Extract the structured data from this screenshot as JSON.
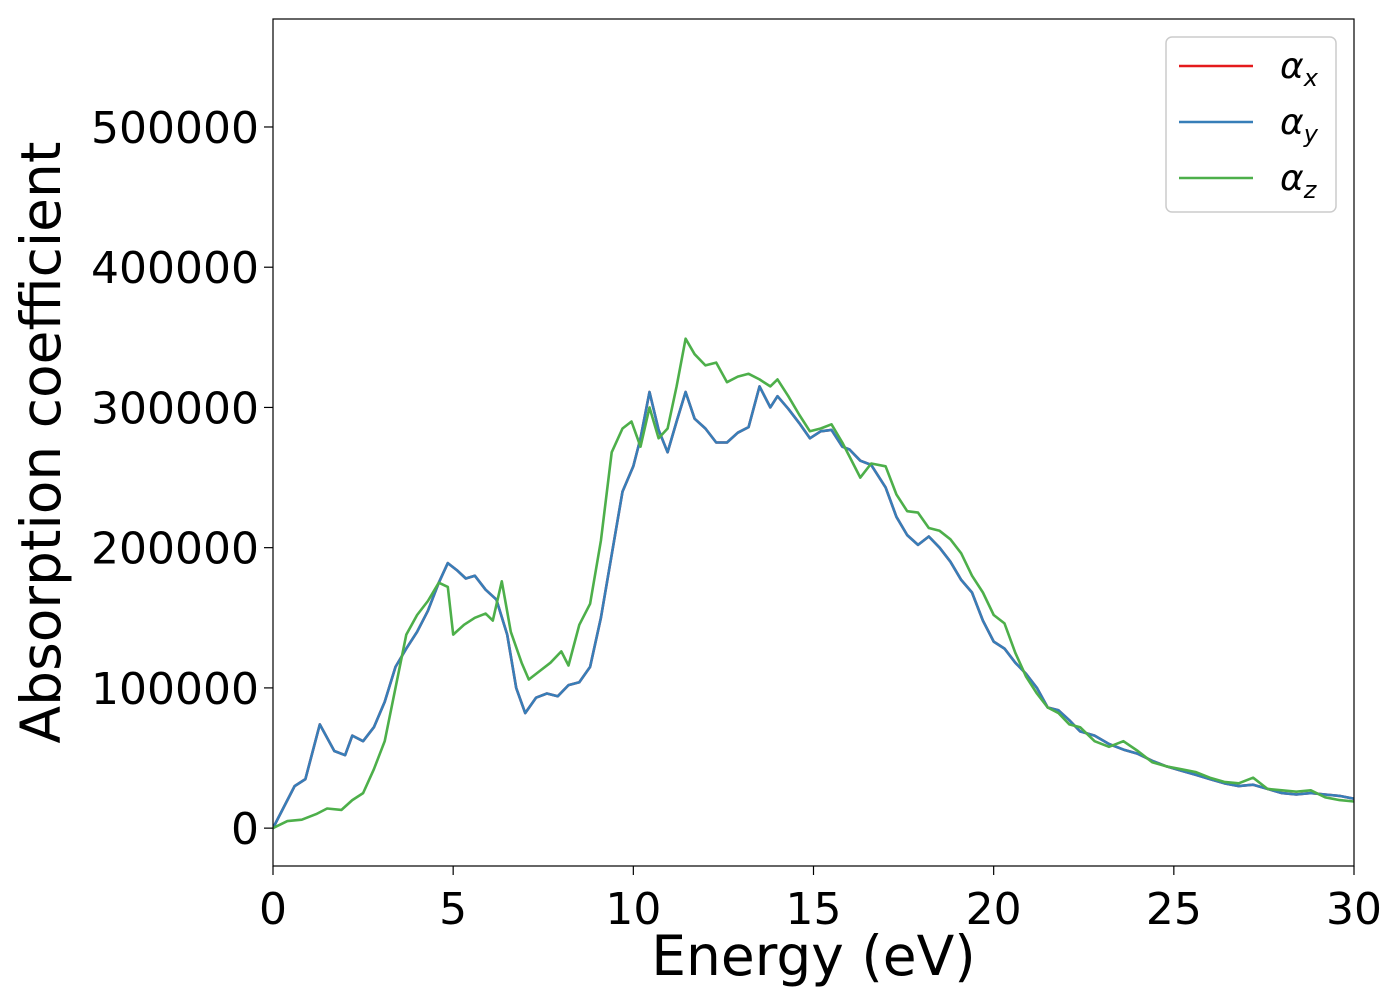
{
  "chart_data": {
    "type": "line",
    "title": "",
    "xlabel": "Energy (eV)",
    "ylabel": "Absorption coefficient",
    "xlim": [
      0,
      30
    ],
    "ylim": [
      -27000,
      577000
    ],
    "xticks": [
      0,
      5,
      10,
      15,
      20,
      25,
      30
    ],
    "yticks": [
      0,
      100000,
      200000,
      300000,
      400000,
      500000
    ],
    "grid": false,
    "legend_position": "top-right",
    "series": [
      {
        "name": "α_x",
        "legend_base": "α",
        "legend_sub": "x",
        "color": "#e41a1c",
        "points": [
          [
            0,
            0
          ],
          [
            0.3,
            15000
          ],
          [
            0.6,
            30000
          ],
          [
            0.9,
            35000
          ],
          [
            1.3,
            74000
          ],
          [
            1.7,
            55000
          ],
          [
            2.0,
            52000
          ],
          [
            2.2,
            66000
          ],
          [
            2.5,
            62000
          ],
          [
            2.8,
            72000
          ],
          [
            3.1,
            90000
          ],
          [
            3.4,
            115000
          ],
          [
            3.7,
            128000
          ],
          [
            4.0,
            140000
          ],
          [
            4.3,
            155000
          ],
          [
            4.6,
            175000
          ],
          [
            4.85,
            189000
          ],
          [
            5.1,
            184000
          ],
          [
            5.35,
            178000
          ],
          [
            5.6,
            180000
          ],
          [
            5.9,
            170000
          ],
          [
            6.2,
            163000
          ],
          [
            6.5,
            138000
          ],
          [
            6.75,
            100000
          ],
          [
            7.0,
            82000
          ],
          [
            7.3,
            93000
          ],
          [
            7.6,
            96000
          ],
          [
            7.9,
            94000
          ],
          [
            8.2,
            102000
          ],
          [
            8.5,
            104000
          ],
          [
            8.8,
            115000
          ],
          [
            9.1,
            150000
          ],
          [
            9.4,
            195000
          ],
          [
            9.7,
            240000
          ],
          [
            10.0,
            258000
          ],
          [
            10.2,
            278000
          ],
          [
            10.45,
            311000
          ],
          [
            10.7,
            284000
          ],
          [
            10.95,
            268000
          ],
          [
            11.2,
            290000
          ],
          [
            11.45,
            311000
          ],
          [
            11.7,
            292000
          ],
          [
            12.0,
            285000
          ],
          [
            12.3,
            275000
          ],
          [
            12.6,
            275000
          ],
          [
            12.9,
            282000
          ],
          [
            13.2,
            286000
          ],
          [
            13.5,
            315000
          ],
          [
            13.8,
            300000
          ],
          [
            14.0,
            308000
          ],
          [
            14.3,
            299000
          ],
          [
            14.6,
            289000
          ],
          [
            14.9,
            278000
          ],
          [
            15.2,
            283000
          ],
          [
            15.5,
            284000
          ],
          [
            15.8,
            272000
          ],
          [
            16.0,
            270000
          ],
          [
            16.3,
            262000
          ],
          [
            16.6,
            259000
          ],
          [
            17.0,
            243000
          ],
          [
            17.3,
            222000
          ],
          [
            17.6,
            209000
          ],
          [
            17.9,
            202000
          ],
          [
            18.2,
            208000
          ],
          [
            18.5,
            200000
          ],
          [
            18.8,
            190000
          ],
          [
            19.1,
            177000
          ],
          [
            19.4,
            168000
          ],
          [
            19.7,
            148000
          ],
          [
            20.0,
            133000
          ],
          [
            20.3,
            128000
          ],
          [
            20.6,
            118000
          ],
          [
            20.9,
            110000
          ],
          [
            21.2,
            100000
          ],
          [
            21.5,
            86000
          ],
          [
            21.8,
            84000
          ],
          [
            22.1,
            77000
          ],
          [
            22.4,
            69000
          ],
          [
            22.8,
            66000
          ],
          [
            23.2,
            60000
          ],
          [
            23.6,
            56000
          ],
          [
            24.0,
            53000
          ],
          [
            24.4,
            48000
          ],
          [
            24.8,
            44000
          ],
          [
            25.2,
            41000
          ],
          [
            25.6,
            38000
          ],
          [
            26.0,
            35000
          ],
          [
            26.4,
            32000
          ],
          [
            26.8,
            30000
          ],
          [
            27.2,
            31000
          ],
          [
            27.6,
            28000
          ],
          [
            28.0,
            25000
          ],
          [
            28.4,
            24000
          ],
          [
            28.8,
            25000
          ],
          [
            29.2,
            24000
          ],
          [
            29.6,
            23000
          ],
          [
            30.0,
            21000
          ]
        ]
      },
      {
        "name": "α_y",
        "legend_base": "α",
        "legend_sub": "y",
        "color": "#377eb8",
        "points": [
          [
            0,
            0
          ],
          [
            0.3,
            15000
          ],
          [
            0.6,
            30000
          ],
          [
            0.9,
            35000
          ],
          [
            1.3,
            74000
          ],
          [
            1.7,
            55000
          ],
          [
            2.0,
            52000
          ],
          [
            2.2,
            66000
          ],
          [
            2.5,
            62000
          ],
          [
            2.8,
            72000
          ],
          [
            3.1,
            90000
          ],
          [
            3.4,
            115000
          ],
          [
            3.7,
            128000
          ],
          [
            4.0,
            140000
          ],
          [
            4.3,
            155000
          ],
          [
            4.6,
            175000
          ],
          [
            4.85,
            189000
          ],
          [
            5.1,
            184000
          ],
          [
            5.35,
            178000
          ],
          [
            5.6,
            180000
          ],
          [
            5.9,
            170000
          ],
          [
            6.2,
            163000
          ],
          [
            6.5,
            138000
          ],
          [
            6.75,
            100000
          ],
          [
            7.0,
            82000
          ],
          [
            7.3,
            93000
          ],
          [
            7.6,
            96000
          ],
          [
            7.9,
            94000
          ],
          [
            8.2,
            102000
          ],
          [
            8.5,
            104000
          ],
          [
            8.8,
            115000
          ],
          [
            9.1,
            150000
          ],
          [
            9.4,
            195000
          ],
          [
            9.7,
            240000
          ],
          [
            10.0,
            258000
          ],
          [
            10.2,
            278000
          ],
          [
            10.45,
            311000
          ],
          [
            10.7,
            284000
          ],
          [
            10.95,
            268000
          ],
          [
            11.2,
            290000
          ],
          [
            11.45,
            311000
          ],
          [
            11.7,
            292000
          ],
          [
            12.0,
            285000
          ],
          [
            12.3,
            275000
          ],
          [
            12.6,
            275000
          ],
          [
            12.9,
            282000
          ],
          [
            13.2,
            286000
          ],
          [
            13.5,
            315000
          ],
          [
            13.8,
            300000
          ],
          [
            14.0,
            308000
          ],
          [
            14.3,
            299000
          ],
          [
            14.6,
            289000
          ],
          [
            14.9,
            278000
          ],
          [
            15.2,
            283000
          ],
          [
            15.5,
            284000
          ],
          [
            15.8,
            272000
          ],
          [
            16.0,
            270000
          ],
          [
            16.3,
            262000
          ],
          [
            16.6,
            259000
          ],
          [
            17.0,
            243000
          ],
          [
            17.3,
            222000
          ],
          [
            17.6,
            209000
          ],
          [
            17.9,
            202000
          ],
          [
            18.2,
            208000
          ],
          [
            18.5,
            200000
          ],
          [
            18.8,
            190000
          ],
          [
            19.1,
            177000
          ],
          [
            19.4,
            168000
          ],
          [
            19.7,
            148000
          ],
          [
            20.0,
            133000
          ],
          [
            20.3,
            128000
          ],
          [
            20.6,
            118000
          ],
          [
            20.9,
            110000
          ],
          [
            21.2,
            100000
          ],
          [
            21.5,
            86000
          ],
          [
            21.8,
            84000
          ],
          [
            22.1,
            77000
          ],
          [
            22.4,
            69000
          ],
          [
            22.8,
            66000
          ],
          [
            23.2,
            60000
          ],
          [
            23.6,
            56000
          ],
          [
            24.0,
            53000
          ],
          [
            24.4,
            48000
          ],
          [
            24.8,
            44000
          ],
          [
            25.2,
            41000
          ],
          [
            25.6,
            38000
          ],
          [
            26.0,
            35000
          ],
          [
            26.4,
            32000
          ],
          [
            26.8,
            30000
          ],
          [
            27.2,
            31000
          ],
          [
            27.6,
            28000
          ],
          [
            28.0,
            25000
          ],
          [
            28.4,
            24000
          ],
          [
            28.8,
            25000
          ],
          [
            29.2,
            24000
          ],
          [
            29.6,
            23000
          ],
          [
            30.0,
            21000
          ]
        ]
      },
      {
        "name": "α_z",
        "legend_base": "α",
        "legend_sub": "z",
        "color": "#4daf4a",
        "points": [
          [
            0,
            0
          ],
          [
            0.4,
            5000
          ],
          [
            0.8,
            6000
          ],
          [
            1.2,
            10000
          ],
          [
            1.5,
            14000
          ],
          [
            1.9,
            13000
          ],
          [
            2.2,
            20000
          ],
          [
            2.5,
            25000
          ],
          [
            2.8,
            42000
          ],
          [
            3.1,
            62000
          ],
          [
            3.4,
            100000
          ],
          [
            3.7,
            138000
          ],
          [
            4.0,
            152000
          ],
          [
            4.3,
            162000
          ],
          [
            4.6,
            175000
          ],
          [
            4.85,
            172000
          ],
          [
            5.0,
            138000
          ],
          [
            5.3,
            145000
          ],
          [
            5.6,
            150000
          ],
          [
            5.9,
            153000
          ],
          [
            6.1,
            148000
          ],
          [
            6.35,
            176000
          ],
          [
            6.6,
            140000
          ],
          [
            6.9,
            118000
          ],
          [
            7.1,
            106000
          ],
          [
            7.4,
            112000
          ],
          [
            7.7,
            118000
          ],
          [
            8.0,
            126000
          ],
          [
            8.2,
            116000
          ],
          [
            8.5,
            145000
          ],
          [
            8.8,
            160000
          ],
          [
            9.1,
            205000
          ],
          [
            9.4,
            268000
          ],
          [
            9.7,
            285000
          ],
          [
            9.95,
            290000
          ],
          [
            10.2,
            272000
          ],
          [
            10.45,
            300000
          ],
          [
            10.7,
            278000
          ],
          [
            10.95,
            285000
          ],
          [
            11.2,
            315000
          ],
          [
            11.45,
            349000
          ],
          [
            11.7,
            338000
          ],
          [
            12.0,
            330000
          ],
          [
            12.3,
            332000
          ],
          [
            12.6,
            318000
          ],
          [
            12.9,
            322000
          ],
          [
            13.2,
            324000
          ],
          [
            13.5,
            320000
          ],
          [
            13.8,
            315000
          ],
          [
            14.0,
            320000
          ],
          [
            14.3,
            308000
          ],
          [
            14.6,
            295000
          ],
          [
            14.9,
            283000
          ],
          [
            15.2,
            285000
          ],
          [
            15.5,
            288000
          ],
          [
            15.8,
            275000
          ],
          [
            16.0,
            265000
          ],
          [
            16.3,
            250000
          ],
          [
            16.6,
            260000
          ],
          [
            17.0,
            258000
          ],
          [
            17.3,
            238000
          ],
          [
            17.6,
            226000
          ],
          [
            17.9,
            225000
          ],
          [
            18.2,
            214000
          ],
          [
            18.5,
            212000
          ],
          [
            18.8,
            206000
          ],
          [
            19.1,
            196000
          ],
          [
            19.4,
            180000
          ],
          [
            19.7,
            168000
          ],
          [
            20.0,
            152000
          ],
          [
            20.3,
            146000
          ],
          [
            20.6,
            125000
          ],
          [
            20.9,
            108000
          ],
          [
            21.2,
            96000
          ],
          [
            21.5,
            86000
          ],
          [
            21.8,
            82000
          ],
          [
            22.1,
            74000
          ],
          [
            22.4,
            72000
          ],
          [
            22.8,
            62000
          ],
          [
            23.2,
            58000
          ],
          [
            23.6,
            62000
          ],
          [
            24.0,
            55000
          ],
          [
            24.4,
            47000
          ],
          [
            24.8,
            44000
          ],
          [
            25.2,
            42000
          ],
          [
            25.6,
            40000
          ],
          [
            26.0,
            36000
          ],
          [
            26.4,
            33000
          ],
          [
            26.8,
            32000
          ],
          [
            27.2,
            36000
          ],
          [
            27.6,
            28000
          ],
          [
            28.0,
            27000
          ],
          [
            28.4,
            26000
          ],
          [
            28.8,
            27000
          ],
          [
            29.2,
            22000
          ],
          [
            29.6,
            20000
          ],
          [
            30.0,
            19000
          ]
        ]
      }
    ]
  }
}
